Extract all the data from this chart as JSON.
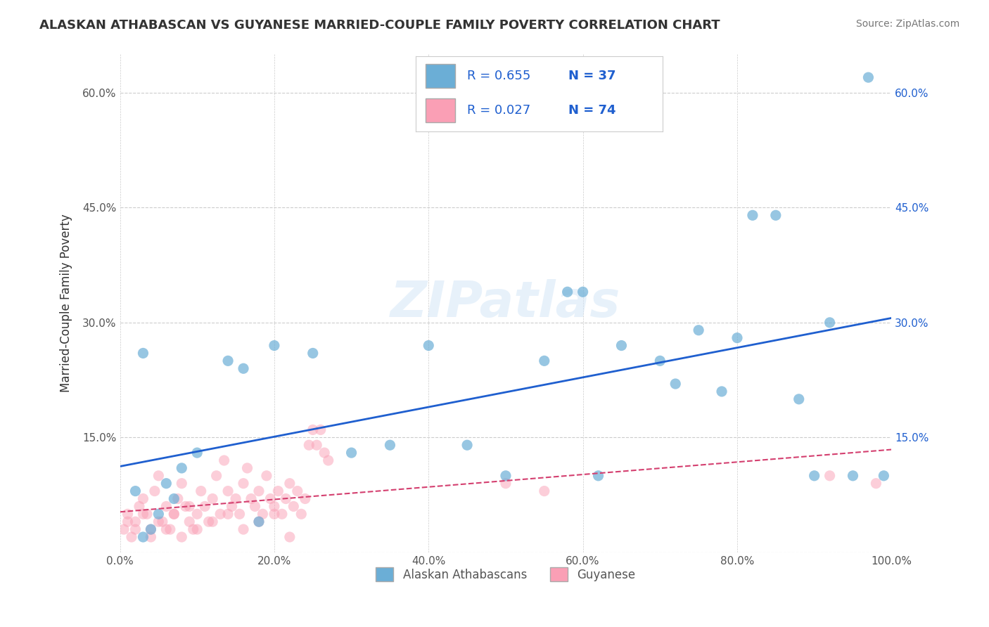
{
  "title": "ALASKAN ATHABASCAN VS GUYANESE MARRIED-COUPLE FAMILY POVERTY CORRELATION CHART",
  "source": "Source: ZipAtlas.com",
  "xlabel": "",
  "ylabel": "Married-Couple Family Poverty",
  "xlim": [
    0,
    100
  ],
  "ylim": [
    0,
    65
  ],
  "x_ticks": [
    0,
    20,
    40,
    60,
    80,
    100
  ],
  "x_tick_labels": [
    "0.0%",
    "20.0%",
    "40.0%",
    "60.0%",
    "80.0%",
    "100.0%"
  ],
  "y_ticks": [
    0,
    15,
    30,
    45,
    60
  ],
  "y_tick_labels": [
    "",
    "15.0%",
    "30.0%",
    "45.0%",
    "60.0%"
  ],
  "legend_r1": "R = 0.655",
  "legend_n1": "N = 37",
  "legend_r2": "R = 0.027",
  "legend_n2": "N = 74",
  "blue_color": "#6baed6",
  "pink_color": "#fa9fb5",
  "blue_line_color": "#1f5fcf",
  "pink_line_color": "#d43f6f",
  "watermark": "ZIPatlas",
  "blue_scatter_x": [
    2,
    5,
    8,
    3,
    4,
    6,
    7,
    10,
    14,
    16,
    18,
    20,
    25,
    30,
    35,
    40,
    45,
    50,
    55,
    58,
    60,
    62,
    65,
    70,
    72,
    75,
    78,
    80,
    82,
    85,
    88,
    90,
    92,
    95,
    97,
    99,
    3
  ],
  "blue_scatter_y": [
    8,
    5,
    11,
    26,
    3,
    9,
    7,
    13,
    25,
    24,
    4,
    27,
    26,
    13,
    14,
    27,
    14,
    10,
    25,
    34,
    34,
    10,
    27,
    25,
    22,
    29,
    21,
    28,
    44,
    44,
    20,
    10,
    30,
    10,
    62,
    10,
    2
  ],
  "pink_scatter_x": [
    0.5,
    1,
    1.5,
    2,
    2.5,
    3,
    3.5,
    4,
    4.5,
    5,
    5.5,
    6,
    6.5,
    7,
    7.5,
    8,
    8.5,
    9,
    9.5,
    10,
    10.5,
    11,
    11.5,
    12,
    12.5,
    13,
    13.5,
    14,
    14.5,
    15,
    15.5,
    16,
    16.5,
    17,
    17.5,
    18,
    18.5,
    19,
    19.5,
    20,
    20.5,
    21,
    21.5,
    22,
    22.5,
    23,
    23.5,
    24,
    24.5,
    25,
    25.5,
    26,
    26.5,
    27,
    1,
    2,
    3,
    4,
    5,
    6,
    7,
    8,
    9,
    10,
    12,
    14,
    16,
    18,
    20,
    22,
    50,
    55,
    92,
    98
  ],
  "pink_scatter_y": [
    3,
    5,
    2,
    4,
    6,
    7,
    5,
    3,
    8,
    10,
    4,
    6,
    3,
    5,
    7,
    9,
    6,
    4,
    3,
    5,
    8,
    6,
    4,
    7,
    10,
    5,
    12,
    8,
    6,
    7,
    5,
    9,
    11,
    7,
    6,
    8,
    5,
    10,
    7,
    6,
    8,
    5,
    7,
    9,
    6,
    8,
    5,
    7,
    14,
    16,
    14,
    16,
    13,
    12,
    4,
    3,
    5,
    2,
    4,
    3,
    5,
    2,
    6,
    3,
    4,
    5,
    3,
    4,
    5,
    2,
    9,
    8,
    10,
    9
  ]
}
